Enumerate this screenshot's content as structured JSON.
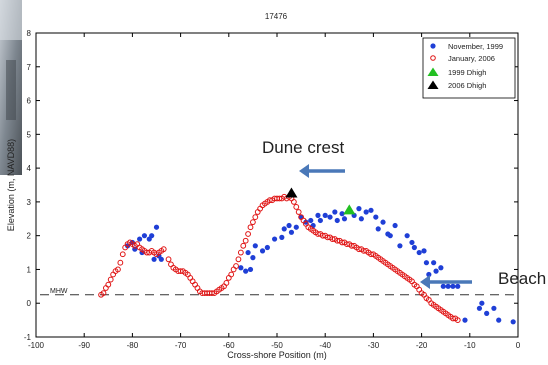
{
  "chart_data": {
    "type": "scatter",
    "title": "17476",
    "xlabel": "Cross-shore Position (m)",
    "ylabel": "Elevation (m, NAVD88)",
    "xlim": [
      -100,
      0
    ],
    "ylim": [
      -1,
      8
    ],
    "x_ticks": [
      -100,
      -90,
      -80,
      -70,
      -60,
      -50,
      -40,
      -30,
      -20,
      -10,
      0
    ],
    "x_tick_labels": [
      "-100",
      "-90",
      "-80",
      "-70",
      "-60",
      "-50",
      "-40",
      "-30",
      "-20",
      "-10",
      "0"
    ],
    "y_ticks": [
      -1,
      0,
      1,
      2,
      3,
      4,
      5,
      6,
      7,
      8
    ],
    "y_tick_labels": [
      "-1",
      "0",
      "1",
      "2",
      "3",
      "4",
      "5",
      "6",
      "7",
      "8"
    ],
    "legend_position": "top-right",
    "mhw": {
      "label": "MHW",
      "y": 0.25
    },
    "series": [
      {
        "name": "November, 1999",
        "marker": "filled-circle",
        "color": "#1f3fd6",
        "points": [
          [
            -81,
            1.7
          ],
          [
            -80,
            1.8
          ],
          [
            -79.5,
            1.6
          ],
          [
            -78.5,
            1.9
          ],
          [
            -78,
            1.5
          ],
          [
            -77.5,
            2.0
          ],
          [
            -76.5,
            1.9
          ],
          [
            -76,
            2.0
          ],
          [
            -75.5,
            1.3
          ],
          [
            -75,
            2.25
          ],
          [
            -74.5,
            1.4
          ],
          [
            -74,
            1.3
          ],
          [
            -57.5,
            1.05
          ],
          [
            -56.5,
            0.95
          ],
          [
            -56,
            1.5
          ],
          [
            -55.5,
            1.0
          ],
          [
            -55,
            1.35
          ],
          [
            -54.5,
            1.7
          ],
          [
            -53,
            1.55
          ],
          [
            -52,
            1.65
          ],
          [
            -50.5,
            1.9
          ],
          [
            -49,
            1.95
          ],
          [
            -48.5,
            2.2
          ],
          [
            -47.5,
            2.3
          ],
          [
            -47,
            2.1
          ],
          [
            -46,
            2.25
          ],
          [
            -45,
            2.55
          ],
          [
            -44,
            2.4
          ],
          [
            -43,
            2.45
          ],
          [
            -42.5,
            2.3
          ],
          [
            -41.5,
            2.6
          ],
          [
            -41,
            2.45
          ],
          [
            -40,
            2.6
          ],
          [
            -39,
            2.55
          ],
          [
            -38,
            2.7
          ],
          [
            -37.5,
            2.45
          ],
          [
            -36.5,
            2.65
          ],
          [
            -36,
            2.5
          ],
          [
            -34,
            2.6
          ],
          [
            -33,
            2.8
          ],
          [
            -32.5,
            2.5
          ],
          [
            -31.5,
            2.7
          ],
          [
            -30.5,
            2.75
          ],
          [
            -29.5,
            2.55
          ],
          [
            -29,
            2.2
          ],
          [
            -28,
            2.4
          ],
          [
            -27,
            2.05
          ],
          [
            -26.5,
            2.0
          ],
          [
            -25.5,
            2.3
          ],
          [
            -24.5,
            1.7
          ],
          [
            -23,
            2.0
          ],
          [
            -22,
            1.8
          ],
          [
            -21.5,
            1.65
          ],
          [
            -20.5,
            1.5
          ],
          [
            -19.5,
            1.55
          ],
          [
            -19,
            1.2
          ],
          [
            -18.5,
            0.85
          ],
          [
            -17.5,
            1.2
          ],
          [
            -17,
            0.95
          ],
          [
            -16,
            1.05
          ],
          [
            -15.5,
            0.5
          ],
          [
            -14.5,
            0.5
          ],
          [
            -13.5,
            0.5
          ],
          [
            -12.5,
            0.5
          ],
          [
            -11,
            -0.5
          ],
          [
            -8,
            -0.15
          ],
          [
            -7.5,
            0.0
          ],
          [
            -6.5,
            -0.3
          ],
          [
            -5,
            -0.15
          ],
          [
            -4,
            -0.5
          ],
          [
            -1,
            -0.55
          ]
        ]
      },
      {
        "name": "January, 2006",
        "marker": "open-circle",
        "color": "#e01414",
        "points": [
          [
            -86.5,
            0.25
          ],
          [
            -86,
            0.3
          ],
          [
            -85.5,
            0.45
          ],
          [
            -85,
            0.55
          ],
          [
            -84.5,
            0.7
          ],
          [
            -84,
            0.85
          ],
          [
            -83.5,
            0.95
          ],
          [
            -83,
            1.0
          ],
          [
            -82.5,
            1.2
          ],
          [
            -82,
            1.45
          ],
          [
            -81.5,
            1.65
          ],
          [
            -81,
            1.75
          ],
          [
            -80.5,
            1.8
          ],
          [
            -80,
            1.75
          ],
          [
            -79.5,
            1.7
          ],
          [
            -79,
            1.75
          ],
          [
            -78.5,
            1.65
          ],
          [
            -78,
            1.6
          ],
          [
            -77.5,
            1.55
          ],
          [
            -77,
            1.5
          ],
          [
            -76.5,
            1.5
          ],
          [
            -76,
            1.55
          ],
          [
            -75.5,
            1.5
          ],
          [
            -75,
            1.45
          ],
          [
            -74.5,
            1.5
          ],
          [
            -74,
            1.55
          ],
          [
            -73.5,
            1.6
          ],
          [
            -72.5,
            1.3
          ],
          [
            -72,
            1.15
          ],
          [
            -71.5,
            1.05
          ],
          [
            -71,
            1.0
          ],
          [
            -70.5,
            0.95
          ],
          [
            -70,
            0.95
          ],
          [
            -69.5,
            0.95
          ],
          [
            -69,
            0.9
          ],
          [
            -68.5,
            0.85
          ],
          [
            -68,
            0.75
          ],
          [
            -67.5,
            0.65
          ],
          [
            -67,
            0.55
          ],
          [
            -66.5,
            0.45
          ],
          [
            -66,
            0.35
          ],
          [
            -65.5,
            0.3
          ],
          [
            -65,
            0.3
          ],
          [
            -64.5,
            0.3
          ],
          [
            -64,
            0.3
          ],
          [
            -63.5,
            0.3
          ],
          [
            -63,
            0.3
          ],
          [
            -62.5,
            0.35
          ],
          [
            -62,
            0.4
          ],
          [
            -61.5,
            0.45
          ],
          [
            -61,
            0.5
          ],
          [
            -60.5,
            0.6
          ],
          [
            -60,
            0.75
          ],
          [
            -59.5,
            0.85
          ],
          [
            -59,
            1.0
          ],
          [
            -58.5,
            1.1
          ],
          [
            -58,
            1.3
          ],
          [
            -57.5,
            1.5
          ],
          [
            -57,
            1.7
          ],
          [
            -56.5,
            1.85
          ],
          [
            -56,
            2.05
          ],
          [
            -55.5,
            2.25
          ],
          [
            -55,
            2.4
          ],
          [
            -54.5,
            2.55
          ],
          [
            -54,
            2.7
          ],
          [
            -53.5,
            2.8
          ],
          [
            -53,
            2.9
          ],
          [
            -52.5,
            2.95
          ],
          [
            -52,
            3.0
          ],
          [
            -51.5,
            3.05
          ],
          [
            -51,
            3.05
          ],
          [
            -50.5,
            3.1
          ],
          [
            -50,
            3.1
          ],
          [
            -49.5,
            3.1
          ],
          [
            -49,
            3.1
          ],
          [
            -48.5,
            3.15
          ],
          [
            -48,
            3.1
          ],
          [
            -47.5,
            3.15
          ],
          [
            -47,
            3.1
          ],
          [
            -46.5,
            3.0
          ],
          [
            -46,
            2.85
          ],
          [
            -45.5,
            2.7
          ],
          [
            -45,
            2.55
          ],
          [
            -44.5,
            2.45
          ],
          [
            -44,
            2.35
          ],
          [
            -43.5,
            2.25
          ],
          [
            -43,
            2.2
          ],
          [
            -42.5,
            2.15
          ],
          [
            -42,
            2.1
          ],
          [
            -41.5,
            2.05
          ],
          [
            -41,
            2.05
          ],
          [
            -40.5,
            2.0
          ],
          [
            -40,
            2.0
          ],
          [
            -39.5,
            1.95
          ],
          [
            -39,
            1.95
          ],
          [
            -38.5,
            1.9
          ],
          [
            -38,
            1.9
          ],
          [
            -37.5,
            1.85
          ],
          [
            -37,
            1.85
          ],
          [
            -36.5,
            1.8
          ],
          [
            -36,
            1.8
          ],
          [
            -35.5,
            1.75
          ],
          [
            -35,
            1.75
          ],
          [
            -34.5,
            1.7
          ],
          [
            -34,
            1.7
          ],
          [
            -33.5,
            1.65
          ],
          [
            -33,
            1.6
          ],
          [
            -32.5,
            1.6
          ],
          [
            -32,
            1.55
          ],
          [
            -31.5,
            1.55
          ],
          [
            -31,
            1.5
          ],
          [
            -30.5,
            1.45
          ],
          [
            -30,
            1.45
          ],
          [
            -29.5,
            1.4
          ],
          [
            -29,
            1.35
          ],
          [
            -28.5,
            1.3
          ],
          [
            -28,
            1.25
          ],
          [
            -27.5,
            1.2
          ],
          [
            -27,
            1.15
          ],
          [
            -26.5,
            1.1
          ],
          [
            -26,
            1.05
          ],
          [
            -25.5,
            1.0
          ],
          [
            -25,
            0.95
          ],
          [
            -24.5,
            0.9
          ],
          [
            -24,
            0.85
          ],
          [
            -23.5,
            0.8
          ],
          [
            -23,
            0.75
          ],
          [
            -22.5,
            0.7
          ],
          [
            -22,
            0.65
          ],
          [
            -21.5,
            0.55
          ],
          [
            -21,
            0.5
          ],
          [
            -20.5,
            0.4
          ],
          [
            -20,
            0.3
          ],
          [
            -19.5,
            0.25
          ],
          [
            -19,
            0.15
          ],
          [
            -18.5,
            0.1
          ],
          [
            -18,
            0.0
          ],
          [
            -17.5,
            -0.05
          ],
          [
            -17,
            -0.1
          ],
          [
            -16.5,
            -0.15
          ],
          [
            -16,
            -0.2
          ],
          [
            -15.5,
            -0.25
          ],
          [
            -15,
            -0.3
          ],
          [
            -14.5,
            -0.35
          ],
          [
            -14,
            -0.4
          ],
          [
            -13.5,
            -0.45
          ],
          [
            -13,
            -0.45
          ],
          [
            -12.5,
            -0.5
          ]
        ]
      },
      {
        "name": "1999 Dhigh",
        "marker": "filled-triangle",
        "color": "#22c022",
        "points": [
          [
            -35,
            2.75
          ]
        ]
      },
      {
        "name": "2006 Dhigh",
        "marker": "filled-triangle",
        "color": "#000000",
        "points": [
          [
            -47,
            3.25
          ]
        ]
      }
    ],
    "annotations": [
      {
        "text": "Dune crest",
        "arrow_from": [
          -37,
          3.9
        ],
        "arrow_to": [
          -49,
          3.9
        ]
      },
      {
        "text": "Beach",
        "arrow_from": [
          -15,
          0.5
        ],
        "arrow_to": [
          -27,
          0.5
        ]
      }
    ]
  }
}
